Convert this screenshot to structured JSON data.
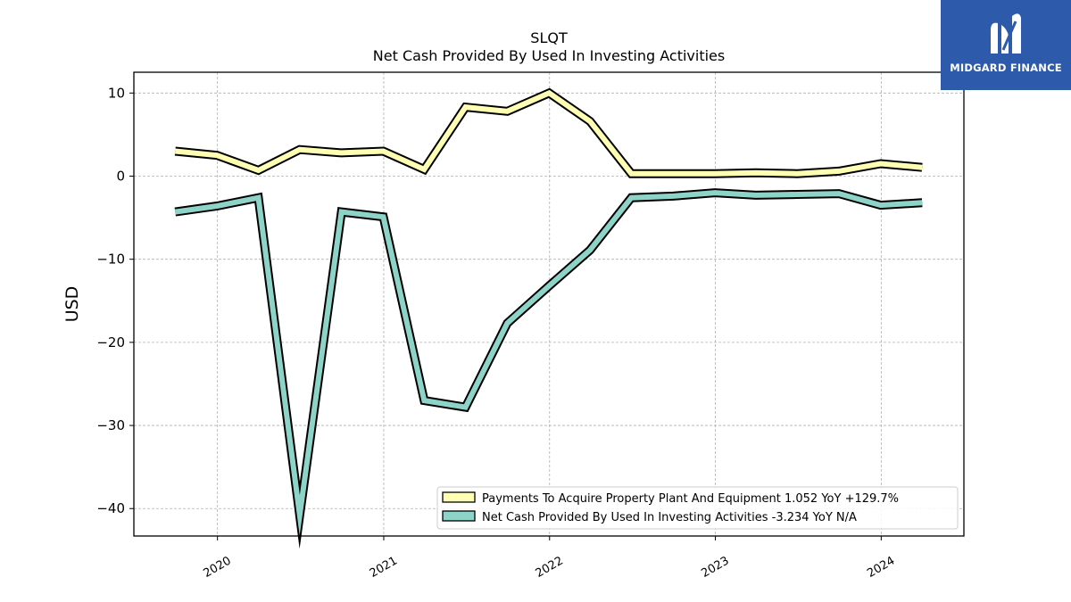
{
  "chart_data": {
    "type": "line",
    "title": "SLQT",
    "subtitle": "Net Cash Provided By Used In Investing Activities",
    "ylabel": "USD",
    "xlabel": "",
    "xlim": [
      "2019-07-01",
      "2024-07-01"
    ],
    "ylim": [
      -43.3,
      12.5
    ],
    "yticks": [
      10,
      0,
      -10,
      -20,
      -30,
      -40
    ],
    "ytick_labels": [
      "10",
      "0",
      "−10",
      "−20",
      "−30",
      "−40"
    ],
    "xticks": [
      "2020-01-01",
      "2021-01-01",
      "2022-01-01",
      "2023-01-01",
      "2024-01-01"
    ],
    "xtick_labels": [
      "2020",
      "2021",
      "2022",
      "2023",
      "2024"
    ],
    "grid": true,
    "legend_position": "lower right",
    "series": [
      {
        "name": "Payments To Acquire Property Plant And Equipment",
        "legend_label": "Payments To Acquire Property Plant And Equipment  1.052 YoY +129.7%",
        "color": "#ffffb3",
        "x": [
          "2019-09-30",
          "2019-12-31",
          "2020-03-31",
          "2020-06-30",
          "2020-09-30",
          "2020-12-31",
          "2021-03-31",
          "2021-06-30",
          "2021-09-30",
          "2021-12-31",
          "2022-03-31",
          "2022-06-30",
          "2022-09-30",
          "2022-12-31",
          "2023-03-31",
          "2023-06-30",
          "2023-09-30",
          "2023-12-31",
          "2024-03-31"
        ],
        "values": [
          3.0,
          2.5,
          0.7,
          3.2,
          2.8,
          3.0,
          0.8,
          8.3,
          7.8,
          10.0,
          6.6,
          0.3,
          0.3,
          0.3,
          0.4,
          0.3,
          0.6,
          1.5,
          1.05
        ]
      },
      {
        "name": "Net Cash Provided By Used In Investing Activities",
        "legend_label": "Net Cash Provided By Used In Investing Activities  -3.234 YoY N/A",
        "color": "#8dd3c7",
        "x": [
          "2019-09-30",
          "2019-12-31",
          "2020-03-31",
          "2020-06-30",
          "2020-09-30",
          "2020-12-31",
          "2021-03-31",
          "2021-06-30",
          "2021-09-30",
          "2021-12-31",
          "2022-03-31",
          "2022-06-30",
          "2022-09-30",
          "2022-12-31",
          "2023-03-31",
          "2023-06-30",
          "2023-09-30",
          "2023-12-31",
          "2024-03-31"
        ],
        "values": [
          -4.3,
          -3.6,
          -2.6,
          -40.8,
          -4.3,
          -4.9,
          -27.0,
          -27.8,
          -17.7,
          -13.2,
          -8.9,
          -2.6,
          -2.4,
          -2.0,
          -2.3,
          -2.2,
          -2.1,
          -3.5,
          -3.2
        ]
      }
    ]
  },
  "logo": {
    "text": "MIDGARD FINANCE",
    "background": "#2d5aaa"
  }
}
